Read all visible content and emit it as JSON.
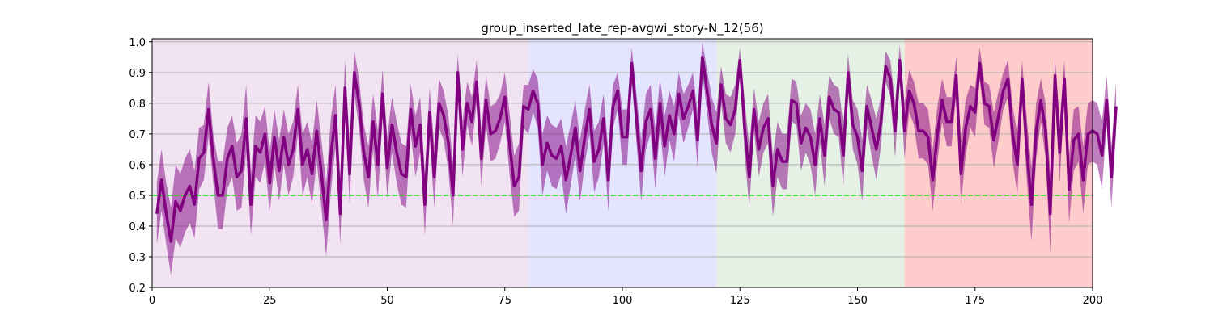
{
  "chart_data": {
    "type": "line",
    "title": "group_inserted_late_rep-avgwi_story-N_12(56)",
    "xlabel": "",
    "ylabel": "",
    "xlim": [
      0,
      200
    ],
    "ylim": [
      0.2,
      1.01
    ],
    "x_ticks": [
      0,
      25,
      50,
      75,
      100,
      125,
      150,
      175,
      200
    ],
    "y_ticks": [
      0.2,
      0.3,
      0.4,
      0.5,
      0.6,
      0.7,
      0.8,
      0.9,
      1.0
    ],
    "x_tick_labels": [
      "0",
      "25",
      "50",
      "75",
      "100",
      "125",
      "150",
      "175",
      "200"
    ],
    "y_tick_labels": [
      "0.2",
      "0.3",
      "0.4",
      "0.5",
      "0.6",
      "0.7",
      "0.8",
      "0.9",
      "1.0"
    ],
    "grid": "horizontal",
    "regions": [
      {
        "x_start": 0,
        "x_end": 80,
        "color": "#f1e3f1"
      },
      {
        "x_start": 80,
        "x_end": 120,
        "color": "#e4e4ff"
      },
      {
        "x_start": 120,
        "x_end": 160,
        "color": "#e6f1e6"
      },
      {
        "x_start": 160,
        "x_end": 200,
        "color": "#ffcccc"
      }
    ],
    "reference_line": {
      "y": 0.5,
      "color": "#22dd22",
      "style": "dashed"
    },
    "series": [
      {
        "color": "#800080",
        "band_color": "#800080",
        "band_opacity": 0.5,
        "x_start": 1,
        "values": [
          0.44,
          0.55,
          0.44,
          0.35,
          0.48,
          0.45,
          0.5,
          0.53,
          0.47,
          0.62,
          0.64,
          0.78,
          0.62,
          0.5,
          0.5,
          0.62,
          0.66,
          0.56,
          0.58,
          0.75,
          0.47,
          0.66,
          0.64,
          0.7,
          0.54,
          0.69,
          0.58,
          0.69,
          0.6,
          0.65,
          0.78,
          0.6,
          0.65,
          0.57,
          0.71,
          0.57,
          0.42,
          0.63,
          0.76,
          0.44,
          0.85,
          0.57,
          0.9,
          0.8,
          0.64,
          0.56,
          0.74,
          0.6,
          0.83,
          0.59,
          0.73,
          0.64,
          0.57,
          0.56,
          0.78,
          0.66,
          0.73,
          0.47,
          0.77,
          0.56,
          0.8,
          0.76,
          0.67,
          0.5,
          0.9,
          0.65,
          0.8,
          0.74,
          0.87,
          0.62,
          0.81,
          0.7,
          0.71,
          0.75,
          0.82,
          0.67,
          0.53,
          0.56,
          0.79,
          0.78,
          0.84,
          0.8,
          0.6,
          0.67,
          0.63,
          0.62,
          0.66,
          0.55,
          0.63,
          0.72,
          0.58,
          0.69,
          0.78,
          0.61,
          0.65,
          0.75,
          0.55,
          0.79,
          0.84,
          0.69,
          0.69,
          0.93,
          0.75,
          0.58,
          0.74,
          0.78,
          0.62,
          0.8,
          0.66,
          0.76,
          0.7,
          0.83,
          0.75,
          0.79,
          0.84,
          0.68,
          0.95,
          0.84,
          0.73,
          0.67,
          0.86,
          0.75,
          0.73,
          0.78,
          0.94,
          0.72,
          0.56,
          0.78,
          0.65,
          0.72,
          0.75,
          0.53,
          0.65,
          0.61,
          0.61,
          0.81,
          0.8,
          0.67,
          0.72,
          0.69,
          0.6,
          0.75,
          0.63,
          0.82,
          0.78,
          0.77,
          0.63,
          0.9,
          0.73,
          0.69,
          0.58,
          0.79,
          0.72,
          0.65,
          0.74,
          0.92,
          0.88,
          0.71,
          0.94,
          0.71,
          0.84,
          0.8,
          0.71,
          0.71,
          0.69,
          0.55,
          0.7,
          0.81,
          0.74,
          0.74,
          0.89,
          0.57,
          0.72,
          0.79,
          0.77,
          0.93,
          0.8,
          0.79,
          0.68,
          0.76,
          0.84,
          0.88,
          0.7,
          0.6,
          0.88,
          0.65,
          0.47,
          0.71,
          0.81,
          0.71,
          0.44,
          0.89,
          0.64,
          0.88,
          0.52,
          0.68,
          0.7,
          0.55,
          0.7,
          0.71,
          0.7,
          0.63,
          0.81,
          0.56,
          0.79
        ],
        "band_halfwidth": [
          0.1,
          0.1,
          0.1,
          0.11,
          0.12,
          0.12,
          0.12,
          0.12,
          0.11,
          0.1,
          0.09,
          0.09,
          0.08,
          0.11,
          0.11,
          0.1,
          0.1,
          0.11,
          0.12,
          0.11,
          0.1,
          0.1,
          0.1,
          0.09,
          0.1,
          0.09,
          0.1,
          0.09,
          0.1,
          0.09,
          0.08,
          0.1,
          0.09,
          0.1,
          0.1,
          0.11,
          0.12,
          0.12,
          0.1,
          0.1,
          0.09,
          0.1,
          0.07,
          0.08,
          0.09,
          0.1,
          0.09,
          0.11,
          0.08,
          0.1,
          0.09,
          0.1,
          0.1,
          0.1,
          0.08,
          0.1,
          0.09,
          0.1,
          0.08,
          0.1,
          0.08,
          0.08,
          0.09,
          0.1,
          0.06,
          0.09,
          0.07,
          0.08,
          0.07,
          0.09,
          0.08,
          0.09,
          0.09,
          0.08,
          0.08,
          0.1,
          0.1,
          0.11,
          0.07,
          0.08,
          0.07,
          0.08,
          0.1,
          0.09,
          0.1,
          0.1,
          0.09,
          0.11,
          0.1,
          0.09,
          0.1,
          0.09,
          0.08,
          0.1,
          0.09,
          0.08,
          0.1,
          0.07,
          0.06,
          0.09,
          0.09,
          0.05,
          0.08,
          0.1,
          0.09,
          0.08,
          0.1,
          0.08,
          0.1,
          0.08,
          0.09,
          0.07,
          0.08,
          0.07,
          0.06,
          0.09,
          0.05,
          0.07,
          0.09,
          0.1,
          0.06,
          0.08,
          0.09,
          0.08,
          0.04,
          0.09,
          0.1,
          0.07,
          0.09,
          0.08,
          0.08,
          0.1,
          0.09,
          0.09,
          0.09,
          0.07,
          0.07,
          0.09,
          0.08,
          0.09,
          0.1,
          0.08,
          0.1,
          0.07,
          0.08,
          0.08,
          0.1,
          0.06,
          0.08,
          0.09,
          0.1,
          0.07,
          0.09,
          0.1,
          0.08,
          0.05,
          0.06,
          0.09,
          0.05,
          0.09,
          0.07,
          0.07,
          0.09,
          0.09,
          0.09,
          0.1,
          0.09,
          0.07,
          0.08,
          0.08,
          0.06,
          0.1,
          0.09,
          0.07,
          0.08,
          0.05,
          0.07,
          0.07,
          0.09,
          0.08,
          0.06,
          0.06,
          0.09,
          0.1,
          0.06,
          0.1,
          0.12,
          0.09,
          0.07,
          0.09,
          0.13,
          0.06,
          0.1,
          0.06,
          0.11,
          0.1,
          0.09,
          0.11,
          0.1,
          0.1,
          0.1,
          0.11,
          0.08,
          0.1,
          0.08
        ]
      }
    ]
  }
}
